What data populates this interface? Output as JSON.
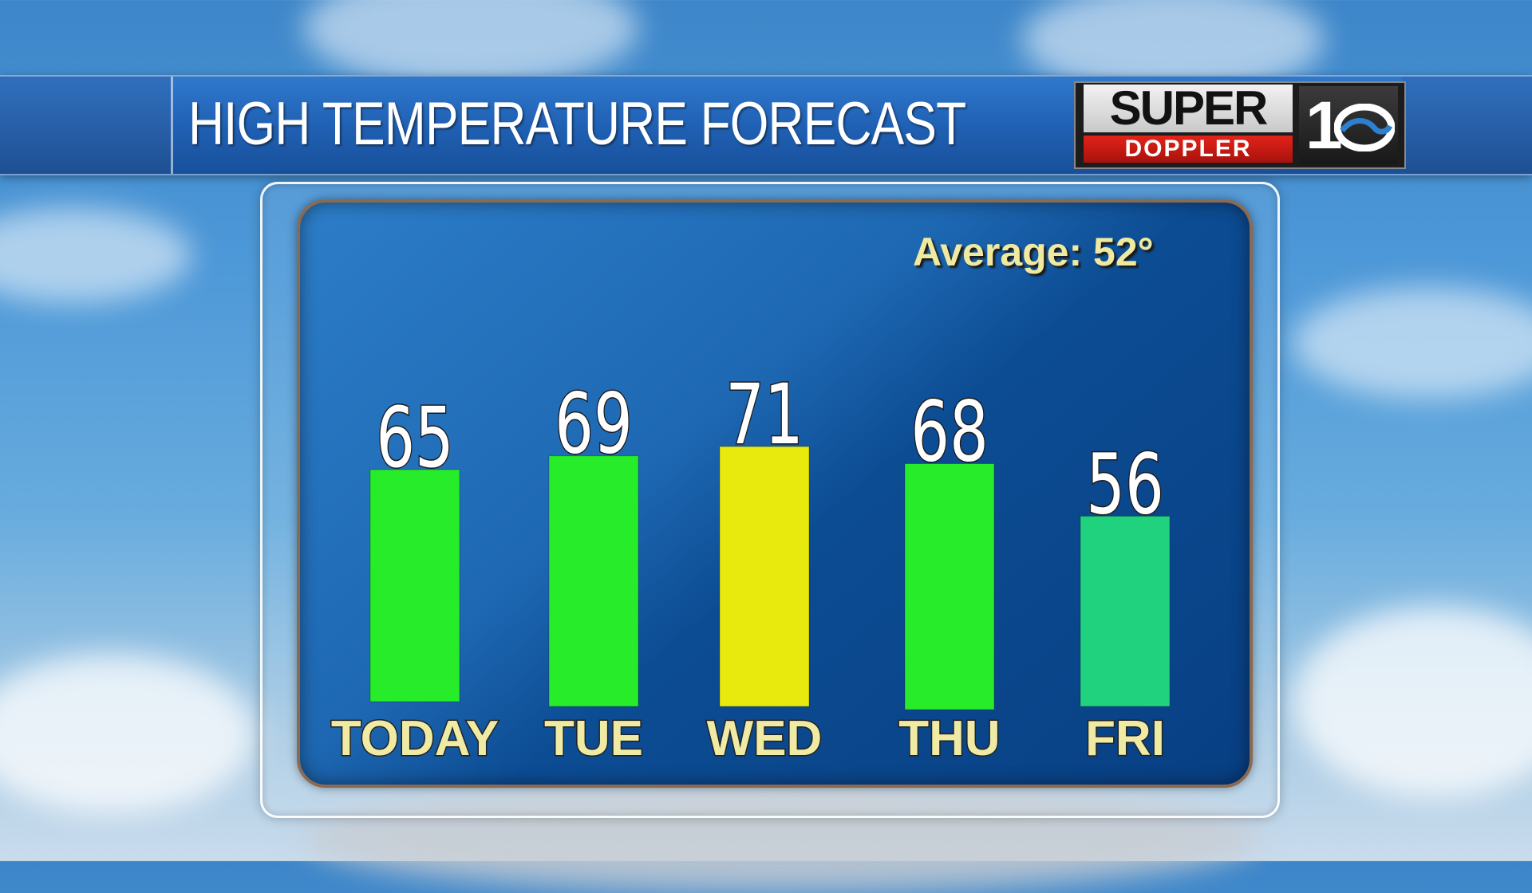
{
  "header": {
    "title": "HIGH TEMPERATURE FORECAST"
  },
  "logo": {
    "top_text": "SUPER",
    "bottom_text": "DOPPLER",
    "channel": "1"
  },
  "average": {
    "text": "Average: 52°"
  },
  "colors": {
    "green": "#26ec2a",
    "yellow": "#e8ea0e",
    "teal": "#20d27e",
    "label": "#efeaa4"
  },
  "chart_data": {
    "type": "bar",
    "categories": [
      "TODAY",
      "TUE",
      "WED",
      "THU",
      "FRI"
    ],
    "values": [
      65,
      69,
      71,
      68,
      56
    ],
    "bar_colors": [
      "#26ec2a",
      "#26ec2a",
      "#e8ea0e",
      "#26ec2a",
      "#20d27e"
    ],
    "title": "HIGH TEMPERATURE FORECAST",
    "annotation": "Average: 52°",
    "grid": false
  }
}
